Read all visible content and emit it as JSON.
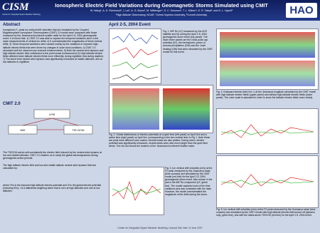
{
  "header": {
    "logo_left": "CISM",
    "logo_left_sub": "Center for Integrated Space Weather Modeling",
    "title": "Ionospheric Electric Field Variations during Geomagnetic Storms Simulated using CMIT",
    "authors": "W. Wang¹, A. D. Richmond¹, J. Lei¹, A. G. Burns¹, M. Wiltberger¹, S. C. Solomon¹, T. L. Killeen¹, E. R. Talaat², and D. L. Hysell³",
    "affiliations": "¹High Altitude Observatory, NCAR,  ²Johns Hopkins University,  ³Cornell University",
    "logo_right": "HAO"
  },
  "abstract": {
    "heading": "Abstract",
    "text": "Ionospheric F₂-peak ion vertical drift velocities that are simulated by the Coupled Magnetosphere Ionosphere Thermosphere (CMIT) 2.0 model were compared with those measured by the Jicamarca incoherent scatter radar for the April 2-5, 2004 geomagnetic event. It is found that: 1) CMIT 2.0 was able to capture the temporal variations seen in the radar measurements of vertical ion drifts; 2) It overestimated the magnitudes of these vertical drifts; 3) These temporal variations were caused mainly by the variations in imposed high-latitude electric fields that were driven by changes in solar wind conditions; 4) CMIT 2.0 simulated well the observed pre-reversal enhancements; 5) Both the neutral wind dynamo and high latitude electric field contributed to the prereversal enhancement; 6) High latitude electric fields affected lower latitude electric fields more efficiently during nighttime that during daytime; 7) The storm-time neutral wind dynamo was significantly enhanced at middle latitudes, and at low latitudes in nighttime."
  },
  "cmit": {
    "heading": "CMIT 2.0",
    "diagram": [
      "LFM",
      "MIX",
      "TIE-GCM"
    ],
    "text1": "The TIEGCM solves self-consistently the electric field induced by the neutral wind dynamo at low and middle latitudes. CMIT 2.0 enables us to study the global electrodynamics during geomagnetic active periods.",
    "text2": "The high latitude electric field and low and middle latitude neutral wind dynamo field are calculated by:",
    "text3": "where Φm is the imposed high latitude electric potential and Ψ is the global electric potential (including Φm), f is a latitudinal weighting factor that is zero at high latitudes and one at low latitudes."
  },
  "event": {
    "heading": "April 2-5, 2004 Event"
  },
  "figures": {
    "fig1": "Fig. 1.  IMF Bz (nT) measured by the ACE satellite and Kp during the April 2-5, 2004 geomagnetic storm event (top panel). The lower three panels are the cross polar cap potential (kV), the hemispheric power of auroral precipitation (GW) and the Joule heating (GW) that were simulated by the CMIT model for this event.",
    "fig2": "Fig. 2.  Global distributions of electric potentials at a quiet time (left panel) on April 2nd and a active time (right panel) on April 3rd, corresponding to the two vertical lines in Fig 1. Note these two plots have different color scales. Neutral winds are also plotted. During storm, electric potential was significantly enhanced; neutral winds were also much larger than the quiet time winds. The red dot shows the location of the Jicamarca Incoherent Scatter radar.",
    "fig3": "Fig. 3.  Ion vertical drift velocities (m/s) at the F2 peak measured by the Jicamarca radar (blue crosses) and simulated by the CMIT model (red line) for the April 2-5, 2004 geomagnetic storm event. Also shown in the plot is the IMF Bz component (nT, green line). The model captured most of the time variations and was consistent with the data. However, the model overestimated the magnitude of the drifts during the storm.",
    "fig4": "Fig. 4.  Eastward electric field (Vm⁻¹) at the Jicamarca longitude simulated by the CMIT model with high latitude electric fields (upper panel) and without high latitude electric fields (lower panel). The color scale is saturated in order to show the latitude electric fields more clearly.",
    "fig5": "Fig. 5.  Ion vertical drift velocities (m/s) at the F2 peak measured by the Jicamarca radar (blue crosses) and simulated by the CMIT model with high latitude electric field turned off (dynamo only, green line), and with the stand-alone TIEGCM (red line) for the April 2-5, 2004 event."
  },
  "footer": "Center for Integrated Space Weather Modeling  •  Annual Site Visit  •  8 June 2007"
}
